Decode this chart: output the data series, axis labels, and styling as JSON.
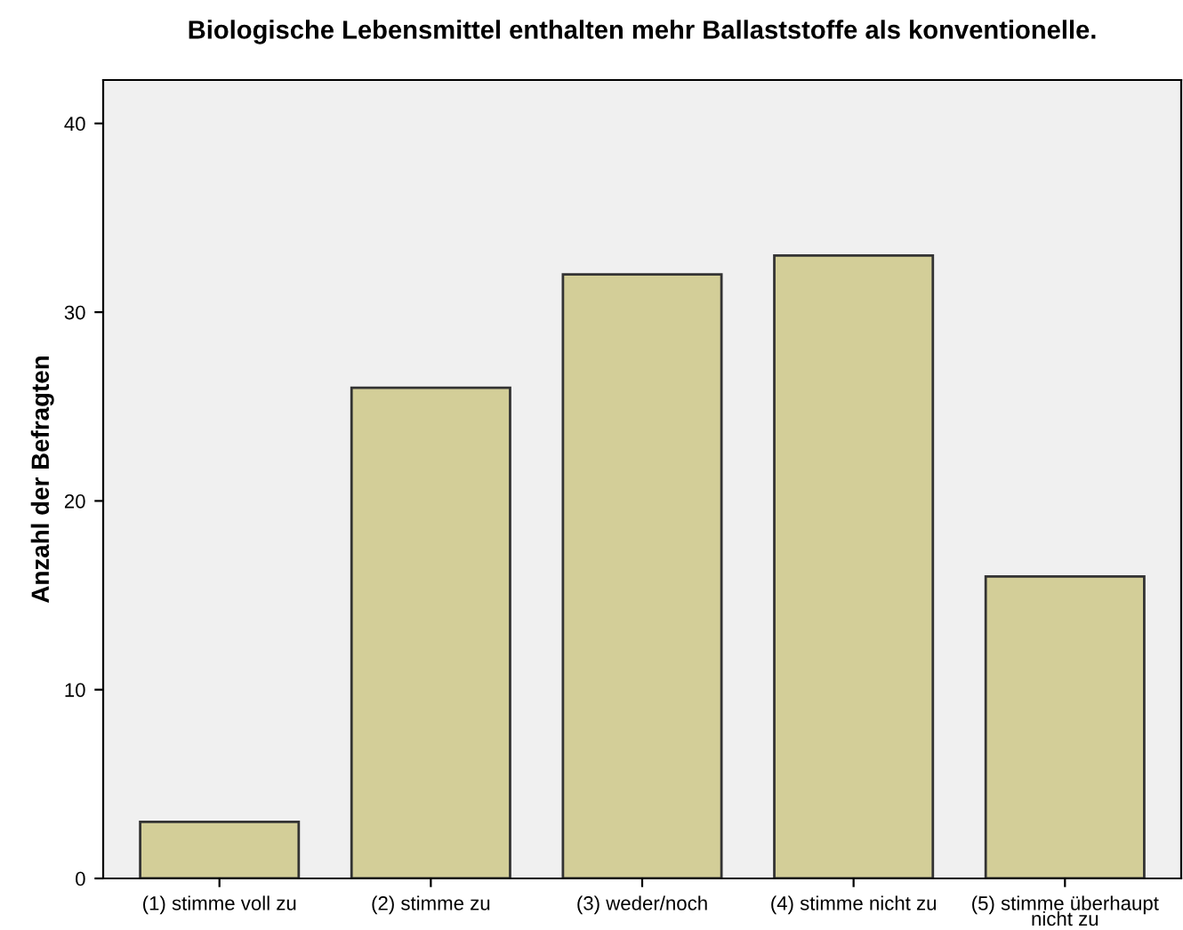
{
  "chart_data": {
    "type": "bar",
    "title": "Biologische Lebensmittel enthalten mehr Ballaststoffe als konventionelle.",
    "ylabel": "Anzahl der Befragten",
    "categories": [
      "(1) stimme voll zu",
      "(2) stimme zu",
      "(3) weder/noch",
      "(4) stimme nicht zu",
      "(5) stimme überhaupt\nnicht zu"
    ],
    "values": [
      3,
      26,
      32,
      33,
      16
    ],
    "color": "#d3ce98",
    "ylim": [
      0,
      42.3
    ],
    "yticks": [
      0,
      10,
      20,
      30,
      40
    ],
    "grid": false,
    "legend": false
  }
}
